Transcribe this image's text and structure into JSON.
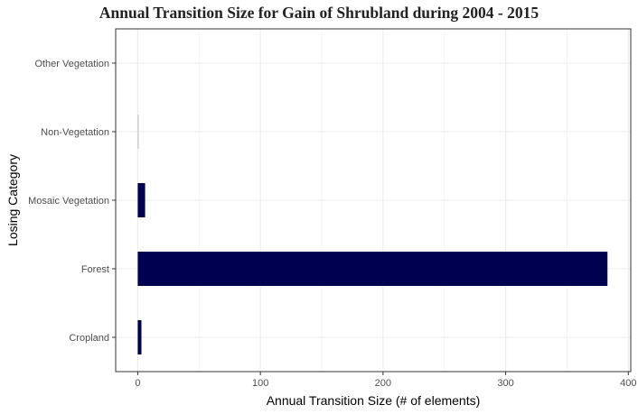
{
  "chart_data": {
    "type": "bar",
    "orientation": "horizontal",
    "title": "Annual Transition Size for Gain of  Shrubland during 2004 - 2015",
    "xlabel": "Annual Transition Size (# of elements)",
    "ylabel": "Losing Category",
    "categories": [
      "Cropland",
      "Forest",
      "Mosaic Vegetation",
      "Non-Vegetation",
      "Other Vegetation"
    ],
    "values": [
      3,
      383,
      6,
      0.5,
      0
    ],
    "xlim": [
      -18,
      402
    ],
    "xticks": [
      0,
      100,
      200,
      300,
      400
    ],
    "grid": true,
    "legend": "none",
    "bar_color": "#000050"
  }
}
